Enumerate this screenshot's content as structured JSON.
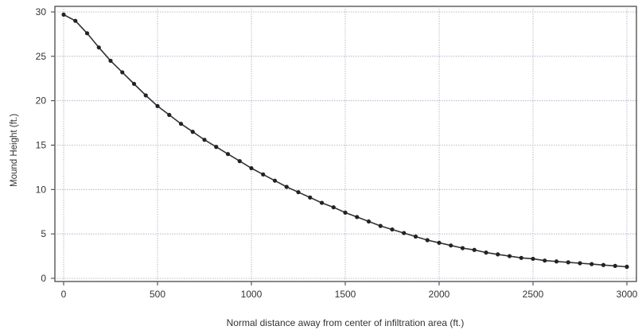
{
  "chart_data": {
    "type": "line",
    "title": "",
    "xlabel": "Normal distance away from center of infiltration area (ft.)",
    "ylabel": "Mound Height (ft.)",
    "xlim": [
      0,
      3000
    ],
    "ylim": [
      0,
      30
    ],
    "x_ticks": [
      "0",
      "500",
      "1000",
      "1500",
      "2000",
      "2500",
      "3000"
    ],
    "y_ticks": [
      "0",
      "5",
      "10",
      "15",
      "20",
      "25",
      "30"
    ],
    "grid": true,
    "legend": "none",
    "series": [
      {
        "color": "#333333",
        "marker": "dot",
        "x": [
          0,
          62.5,
          125,
          187.5,
          250,
          312.5,
          375,
          437.5,
          500,
          562.5,
          625,
          687.5,
          750,
          812.5,
          875,
          937.5,
          1000,
          1062.5,
          1125,
          1187.5,
          1250,
          1312.5,
          1375,
          1437.5,
          1500,
          1562.5,
          1625,
          1687.5,
          1750,
          1812.5,
          1875,
          1937.5,
          2000,
          2062.5,
          2125,
          2187.5,
          2250,
          2312.5,
          2375,
          2437.5,
          2500,
          2562.5,
          2625,
          2687.5,
          2750,
          2812.5,
          2875,
          2937.5,
          3000
        ],
        "y": [
          29.7,
          29.0,
          27.6,
          26.0,
          24.5,
          23.2,
          21.9,
          20.6,
          19.4,
          18.4,
          17.4,
          16.5,
          15.6,
          14.8,
          14.0,
          13.2,
          12.4,
          11.7,
          11.0,
          10.3,
          9.7,
          9.1,
          8.5,
          8.0,
          7.4,
          6.9,
          6.4,
          5.9,
          5.5,
          5.1,
          4.7,
          4.3,
          4.0,
          3.7,
          3.4,
          3.2,
          2.9,
          2.7,
          2.5,
          2.3,
          2.2,
          2.0,
          1.9,
          1.8,
          1.7,
          1.6,
          1.5,
          1.4,
          1.3
        ]
      }
    ]
  }
}
